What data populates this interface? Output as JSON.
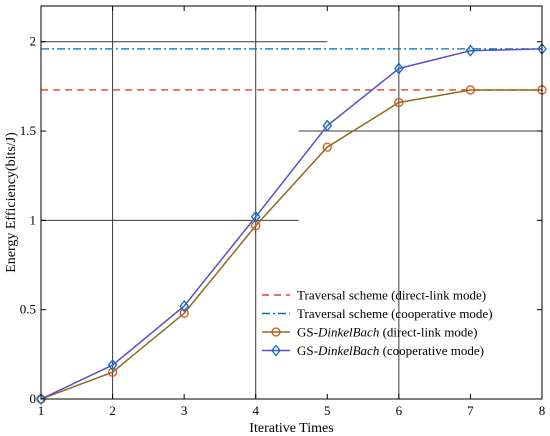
{
  "chart_data": {
    "type": "line",
    "xlabel": "Iterative Times",
    "ylabel": "Energy Efficiency(bits/J)",
    "xlim": [
      1,
      8
    ],
    "ylim": [
      0,
      2.2
    ],
    "x_ticks": [
      1,
      2,
      3,
      4,
      5,
      6,
      7,
      8
    ],
    "y_ticks": [
      {
        "value": 0,
        "label": "0"
      },
      {
        "value": 0.5,
        "label": "0.5"
      },
      {
        "value": 1,
        "label": "1"
      },
      {
        "value": 1.5,
        "label": "1.5"
      },
      {
        "value": 2,
        "label": "2"
      }
    ],
    "legend_position": "bottom-right",
    "grid_segments": [
      {
        "orientation": "vertical",
        "at": 2,
        "from": 0,
        "to": 2.2
      },
      {
        "orientation": "vertical",
        "at": 4,
        "from": 0,
        "to": 2.2
      },
      {
        "orientation": "vertical",
        "at": 6,
        "from": 0,
        "to": 2.2
      },
      {
        "orientation": "horizontal",
        "at": 1,
        "from": 1,
        "to": 4.6
      },
      {
        "orientation": "horizontal",
        "at": 1.5,
        "from": 4.6,
        "to": 8
      },
      {
        "orientation": "horizontal",
        "at": 2,
        "from": 1,
        "to": 5
      }
    ],
    "series": [
      {
        "name": "Traversal scheme (direct-link mode)",
        "kind": "reference",
        "style": "dashed",
        "color": "#e2441c",
        "value": 1.73
      },
      {
        "name": "Traversal scheme (cooperative mode)",
        "kind": "reference",
        "style": "dashdot",
        "color": "#0072bd",
        "value": 1.96
      },
      {
        "name": "GS-DinkelBach (direct-link mode)",
        "name_prefix": "GS-",
        "name_italic": "DinkelBach",
        "name_suffix": " (direct-link mode)",
        "kind": "line",
        "style": "solid",
        "color": "#d95319",
        "line_color": "#8c6d1f",
        "marker": "circle",
        "x": [
          1,
          2,
          3,
          4,
          5,
          6,
          7,
          8
        ],
        "y": [
          0.0,
          0.15,
          0.48,
          0.97,
          1.41,
          1.66,
          1.73,
          1.73
        ]
      },
      {
        "name": "GS-DinkelBach (cooperative mode)",
        "name_prefix": "GS-",
        "name_italic": "DinkelBach",
        "name_suffix": " (cooperative mode)",
        "kind": "line",
        "style": "solid",
        "color": "#0072bd",
        "line_color": "#5a4fc9",
        "marker": "diamond",
        "x": [
          1,
          2,
          3,
          4,
          5,
          6,
          7,
          8
        ],
        "y": [
          0.0,
          0.19,
          0.52,
          1.02,
          1.53,
          1.85,
          1.95,
          1.96
        ]
      }
    ]
  }
}
